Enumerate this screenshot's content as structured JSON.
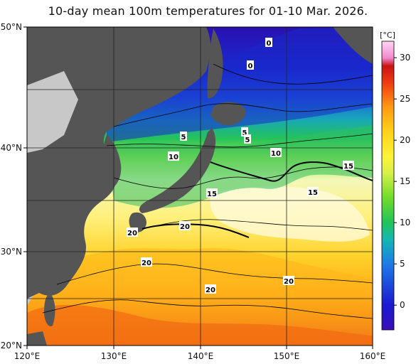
{
  "title": "10-day mean 100m temperatures for 01-10 Mar. 2026.",
  "colorbar": {
    "unit": "[°C]",
    "ticks": [
      "30",
      "25",
      "20",
      "15",
      "10",
      "5",
      "0"
    ],
    "range": [
      -3,
      32
    ],
    "stops": [
      {
        "t": -3,
        "color": "#3a10b8"
      },
      {
        "t": 0,
        "color": "#1a1ad0"
      },
      {
        "t": 5,
        "color": "#1e7be6"
      },
      {
        "t": 8,
        "color": "#14b8b0"
      },
      {
        "t": 10,
        "color": "#22c35a"
      },
      {
        "t": 13,
        "color": "#6fdc2a"
      },
      {
        "t": 16,
        "color": "#d6f04a"
      },
      {
        "t": 18,
        "color": "#fff23a"
      },
      {
        "t": 21,
        "color": "#ffd21a"
      },
      {
        "t": 24,
        "color": "#ff9a14"
      },
      {
        "t": 27,
        "color": "#ee3a12"
      },
      {
        "t": 29,
        "color": "#c81414"
      },
      {
        "t": 30,
        "color": "#f08ad0"
      },
      {
        "t": 32,
        "color": "#ffd6f4"
      }
    ]
  },
  "axes": {
    "lon_labels": [
      "120°E",
      "130°E",
      "140°E",
      "150°E",
      "160°E"
    ],
    "lat_labels": [
      "50°N",
      "40°N",
      "30°N",
      "20°N"
    ]
  },
  "contour_labels": [
    "0",
    "0",
    "5",
    "5",
    "5",
    "10",
    "10",
    "15",
    "15",
    "15",
    "20",
    "20",
    "20",
    "20",
    "20"
  ],
  "colors": {
    "land": "#505050",
    "outside_land": "#c8c8c8",
    "grid": "#222222"
  }
}
